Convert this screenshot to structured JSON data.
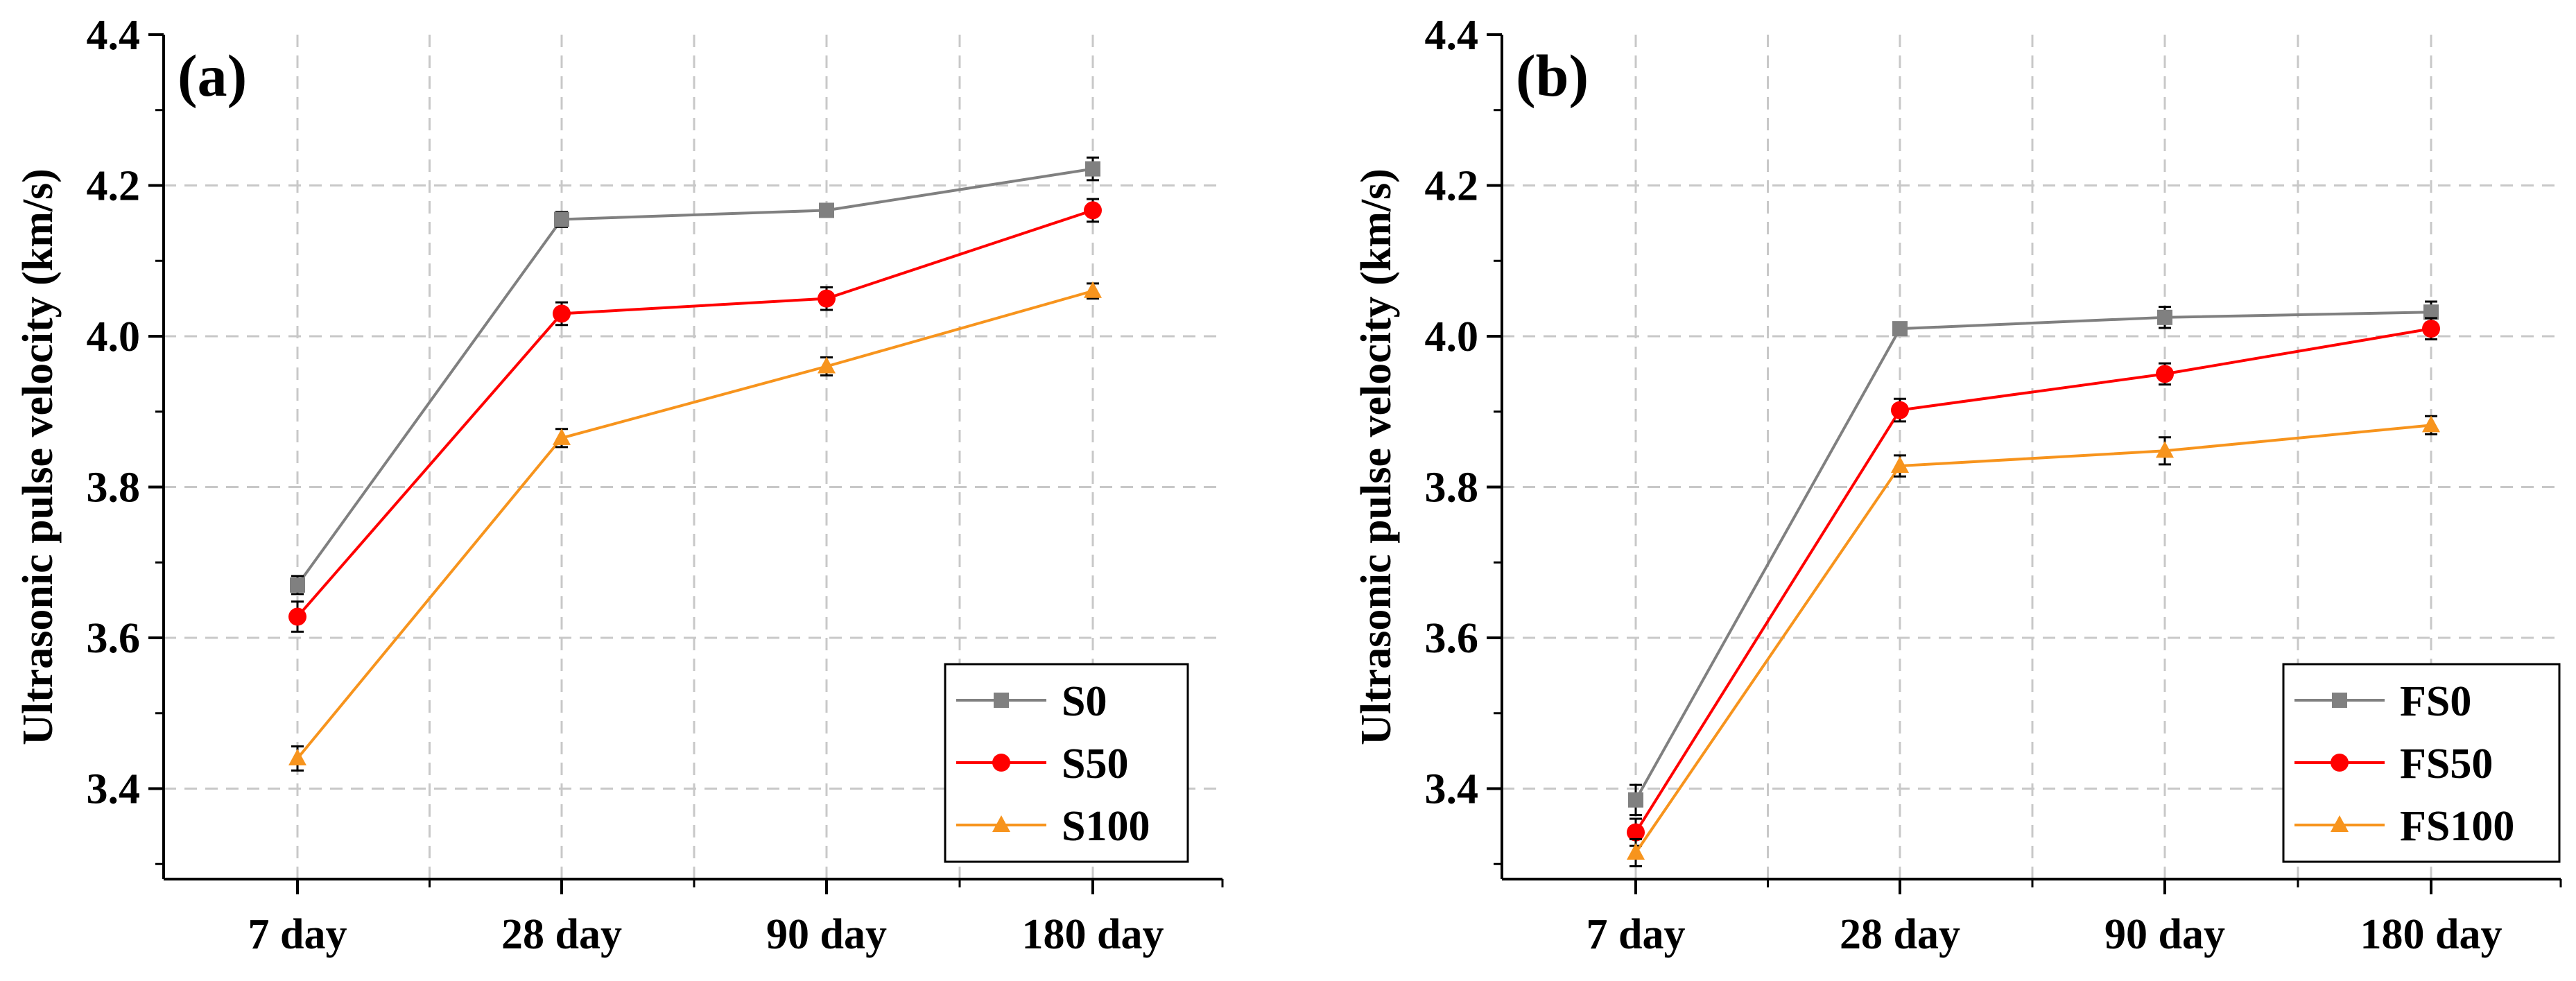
{
  "chart_data": [
    {
      "type": "line",
      "panel_label": "(a)",
      "categories": [
        "7 day",
        "28 day",
        "90 day",
        "180 day"
      ],
      "ylabel": "Ultrasonic pulse velocity (km/s)",
      "xlabel": "",
      "ylim": [
        3.28,
        4.4
      ],
      "yticks": [
        "3.4",
        "3.6",
        "3.8",
        "4.0",
        "4.2",
        "4.4"
      ],
      "grid": true,
      "legend_position": "bottom-right",
      "series": [
        {
          "name": "S0",
          "marker": "square",
          "color": "#808080",
          "values": [
            3.67,
            4.155,
            4.167,
            4.222
          ],
          "errors": [
            0.012,
            0.01,
            0.008,
            0.015
          ]
        },
        {
          "name": "S50",
          "marker": "circle",
          "color": "#ff0000",
          "values": [
            3.628,
            4.03,
            4.05,
            4.167
          ],
          "errors": [
            0.02,
            0.015,
            0.015,
            0.015
          ]
        },
        {
          "name": "S100",
          "marker": "triangle",
          "color": "#f7941d",
          "values": [
            3.44,
            3.865,
            3.96,
            4.06
          ],
          "errors": [
            0.016,
            0.012,
            0.012,
            0.01
          ]
        }
      ]
    },
    {
      "type": "line",
      "panel_label": "(b)",
      "categories": [
        "7 day",
        "28 day",
        "90 day",
        "180 day"
      ],
      "ylabel": "Ultrasonic pulse velocity (km/s)",
      "xlabel": "",
      "ylim": [
        3.28,
        4.4
      ],
      "yticks": [
        "3.4",
        "3.6",
        "3.8",
        "4.0",
        "4.2",
        "4.4"
      ],
      "grid": true,
      "legend_position": "bottom-right",
      "series": [
        {
          "name": "FS0",
          "marker": "square",
          "color": "#808080",
          "values": [
            3.385,
            4.01,
            4.025,
            4.032
          ],
          "errors": [
            0.02,
            0.008,
            0.014,
            0.014
          ]
        },
        {
          "name": "FS50",
          "marker": "circle",
          "color": "#ff0000",
          "values": [
            3.342,
            3.902,
            3.95,
            4.01
          ],
          "errors": [
            0.018,
            0.015,
            0.014,
            0.014
          ]
        },
        {
          "name": "FS100",
          "marker": "triangle",
          "color": "#f7941d",
          "values": [
            3.315,
            3.828,
            3.848,
            3.882
          ],
          "errors": [
            0.018,
            0.014,
            0.018,
            0.012
          ]
        }
      ]
    }
  ]
}
